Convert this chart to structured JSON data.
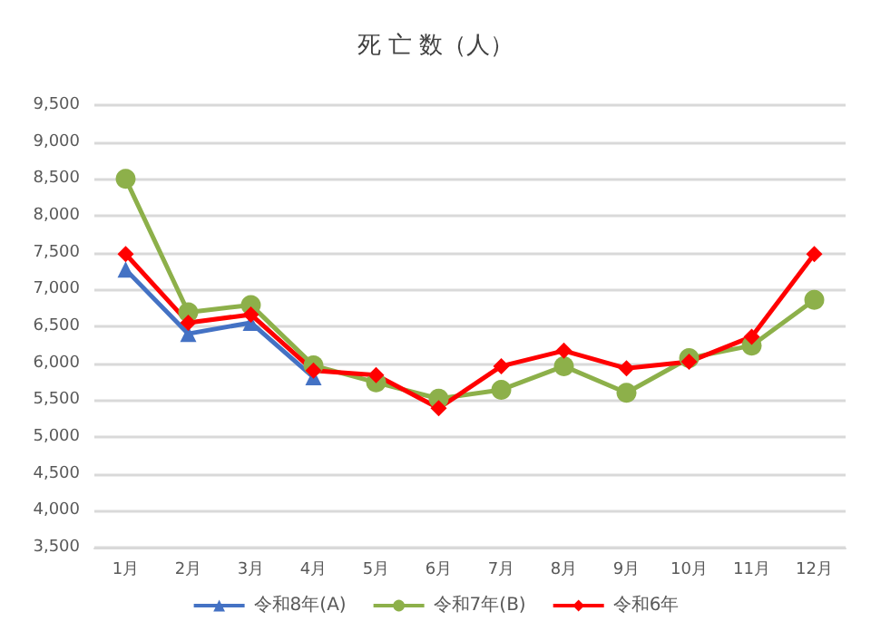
{
  "chart_data": {
    "type": "line",
    "title": "死 亡 数（人）",
    "categories": [
      "1月",
      "2月",
      "3月",
      "4月",
      "5月",
      "6月",
      "7月",
      "8月",
      "9月",
      "10月",
      "11月",
      "12月"
    ],
    "series": [
      {
        "name": "令和8年(A)",
        "color": "#4472c4",
        "marker": "triangle",
        "values": [
          7270,
          6400,
          6550,
          5810,
          null,
          null,
          null,
          null,
          null,
          null,
          null,
          null
        ]
      },
      {
        "name": "令和7年(B)",
        "color": "#8db04a",
        "marker": "circle",
        "values": [
          8500,
          6690,
          6790,
          5970,
          5740,
          5520,
          5640,
          5960,
          5600,
          6070,
          6240,
          6860
        ]
      },
      {
        "name": "令和6年",
        "color": "#ff0000",
        "marker": "diamond",
        "values": [
          7480,
          6550,
          6660,
          5900,
          5840,
          5390,
          5960,
          6170,
          5930,
          6020,
          6360,
          7480
        ]
      }
    ],
    "ylim": [
      3500,
      9500
    ],
    "yticks": [
      {
        "value": 3500,
        "label": "3,500"
      },
      {
        "value": 4000,
        "label": "4,000"
      },
      {
        "value": 4500,
        "label": "4,500"
      },
      {
        "value": 5000,
        "label": "5,000"
      },
      {
        "value": 5500,
        "label": "5,500"
      },
      {
        "value": 6000,
        "label": "6,000"
      },
      {
        "value": 6500,
        "label": "6,500"
      },
      {
        "value": 7000,
        "label": "7,000"
      },
      {
        "value": 7500,
        "label": "7,500"
      },
      {
        "value": 8000,
        "label": "8,000"
      },
      {
        "value": 8500,
        "label": "8,500"
      },
      {
        "value": 9000,
        "label": "9,000"
      },
      {
        "value": 9500,
        "label": "9,500"
      }
    ],
    "grid": "y",
    "legend": "bottom",
    "line_style": "solid"
  }
}
